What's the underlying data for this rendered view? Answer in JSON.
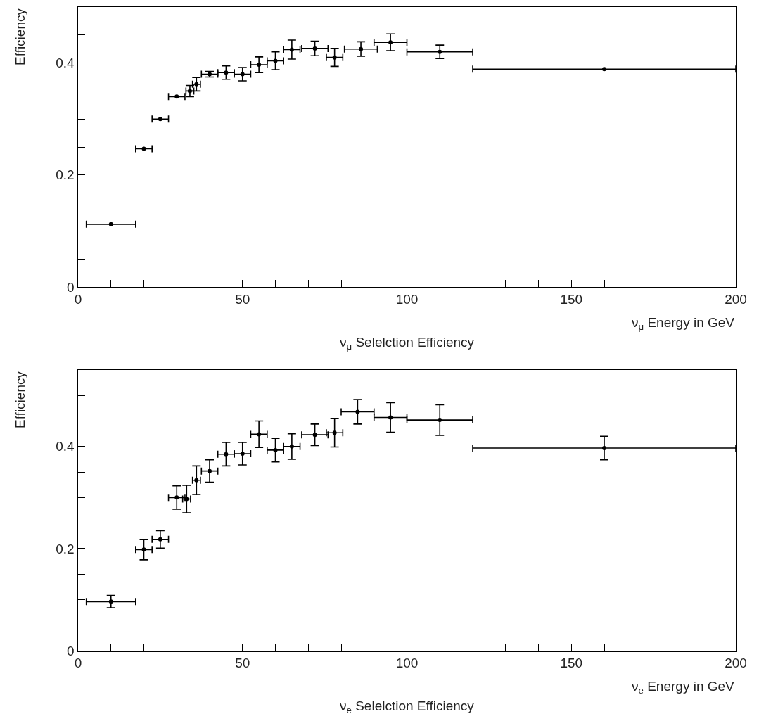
{
  "chart_data": [
    {
      "type": "scatter",
      "title": "ν$_{μ}$ Selelction Efficiency",
      "xlabel": "ν$_{μ}$ Energy in GeV",
      "ylabel": "Efficiency",
      "marker": "circle",
      "color": "#000000",
      "grid": false,
      "legend": false,
      "x": [
        10,
        20,
        25,
        30,
        34,
        36,
        40,
        45,
        50,
        55,
        60,
        65,
        72,
        78,
        86,
        95,
        110,
        160
      ],
      "values": [
        0.112,
        0.247,
        0.3,
        0.34,
        0.35,
        0.362,
        0.38,
        0.383,
        0.38,
        0.397,
        0.404,
        0.424,
        0.426,
        0.41,
        0.425,
        0.437,
        0.42,
        0.389
      ],
      "errors": [
        null,
        null,
        null,
        null,
        0.01,
        0.012,
        0.005,
        0.012,
        0.012,
        0.014,
        0.016,
        0.017,
        0.013,
        0.016,
        0.013,
        0.015,
        0.012,
        null
      ],
      "xerrors": [
        7.5,
        2.5,
        2.5,
        2.5,
        1.2,
        1.2,
        2.5,
        2.5,
        2.5,
        2.5,
        2.5,
        2.5,
        4,
        2.5,
        5,
        5,
        10,
        40
      ],
      "xlim": [
        0,
        200
      ],
      "ylim": [
        0,
        0.5
      ],
      "xticks": [
        0,
        {
          "value": 10,
          "label": null
        },
        {
          "value": 20,
          "label": null
        },
        {
          "value": 30,
          "label": null
        },
        {
          "value": 40,
          "label": null
        },
        50,
        {
          "value": 60,
          "label": null
        },
        {
          "value": 70,
          "label": null
        },
        {
          "value": 80,
          "label": null
        },
        {
          "value": 90,
          "label": null
        },
        100,
        {
          "value": 110,
          "label": null
        },
        {
          "value": 120,
          "label": null
        },
        {
          "value": 130,
          "label": null
        },
        {
          "value": 140,
          "label": null
        },
        150,
        {
          "value": 160,
          "label": null
        },
        {
          "value": 170,
          "label": null
        },
        {
          "value": 180,
          "label": null
        },
        {
          "value": 190,
          "label": null
        },
        200
      ],
      "yticks": [
        0,
        {
          "value": 0.05,
          "label": null
        },
        {
          "value": 0.1,
          "label": null
        },
        {
          "value": 0.15,
          "label": null
        },
        0.2,
        {
          "value": 0.25,
          "label": null
        },
        {
          "value": 0.3,
          "label": null
        },
        {
          "value": 0.35,
          "label": null
        },
        0.4,
        {
          "value": 0.45,
          "label": null
        }
      ]
    },
    {
      "type": "scatter",
      "title": "ν$_{e}$ Selelction Efficiency",
      "xlabel": "ν$_{e}$ Energy in GeV",
      "ylabel": "Efficiency",
      "marker": "circle",
      "color": "#000000",
      "grid": false,
      "legend": false,
      "x": [
        10,
        20,
        25,
        30,
        33,
        36,
        40,
        45,
        50,
        55,
        60,
        65,
        72,
        78,
        85,
        95,
        110,
        160
      ],
      "values": [
        0.096,
        0.198,
        0.218,
        0.3,
        0.297,
        0.334,
        0.352,
        0.385,
        0.386,
        0.424,
        0.393,
        0.4,
        0.423,
        0.427,
        0.468,
        0.457,
        0.452,
        0.397
      ],
      "errors": [
        0.012,
        0.02,
        0.017,
        0.023,
        0.027,
        0.028,
        0.022,
        0.023,
        0.022,
        0.026,
        0.023,
        0.025,
        0.021,
        0.028,
        0.024,
        0.029,
        0.03,
        0.023
      ],
      "xerrors": [
        7.5,
        2.5,
        2.5,
        2.5,
        1.2,
        1.2,
        2.5,
        2.5,
        2.5,
        2.5,
        2.5,
        2.5,
        4,
        2.5,
        5,
        5,
        10,
        40
      ],
      "xlim": [
        0,
        200
      ],
      "ylim": [
        0,
        0.55
      ],
      "xticks": [
        0,
        {
          "value": 10,
          "label": null
        },
        {
          "value": 20,
          "label": null
        },
        {
          "value": 30,
          "label": null
        },
        {
          "value": 40,
          "label": null
        },
        50,
        {
          "value": 60,
          "label": null
        },
        {
          "value": 70,
          "label": null
        },
        {
          "value": 80,
          "label": null
        },
        {
          "value": 90,
          "label": null
        },
        100,
        {
          "value": 110,
          "label": null
        },
        {
          "value": 120,
          "label": null
        },
        {
          "value": 130,
          "label": null
        },
        {
          "value": 140,
          "label": null
        },
        150,
        {
          "value": 160,
          "label": null
        },
        {
          "value": 170,
          "label": null
        },
        {
          "value": 180,
          "label": null
        },
        {
          "value": 190,
          "label": null
        },
        200
      ],
      "yticks": [
        0,
        {
          "value": 0.05,
          "label": null
        },
        {
          "value": 0.1,
          "label": null
        },
        {
          "value": 0.15,
          "label": null
        },
        0.2,
        {
          "value": 0.25,
          "label": null
        },
        {
          "value": 0.3,
          "label": null
        },
        {
          "value": 0.35,
          "label": null
        },
        0.4,
        {
          "value": 0.45,
          "label": null
        },
        {
          "value": 0.5,
          "label": null
        }
      ]
    }
  ]
}
